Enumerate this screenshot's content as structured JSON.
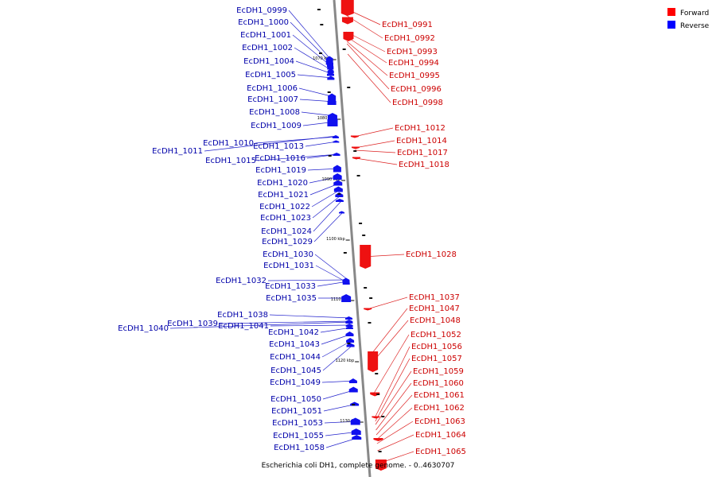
{
  "caption": "Escherichia coli DH1, complete genome. - 0..4630707",
  "legend": [
    {
      "label": "Forward",
      "color": "#ff0000"
    },
    {
      "label": "Reverse",
      "color": "#0000ff"
    }
  ],
  "colors": {
    "forward_fill": "#ee1111",
    "reverse_fill": "#1010ee",
    "forward_text": "#cc0000",
    "reverse_text": "#0000aa",
    "forward_line": "#dd2222",
    "reverse_line": "#2222cc",
    "axis": "#888888"
  },
  "scale_ticks": [
    "1070 kbp",
    "1080 kbp",
    "1090 kbp",
    "1100 kbp",
    "1110 kbp",
    "1120 kbp",
    "1130 kbp"
  ],
  "reverse_genes": [
    "EcDH1_0999",
    "EcDH1_1000",
    "EcDH1_1001",
    "EcDH1_1002",
    "EcDH1_1004",
    "EcDH1_1005",
    "EcDH1_1006",
    "EcDH1_1007",
    "EcDH1_1008",
    "EcDH1_1009",
    "EcDH1_1010",
    "EcDH1_1011",
    "EcDH1_1013",
    "EcDH1_1015",
    "EcDH1_1016",
    "EcDH1_1019",
    "EcDH1_1020",
    "EcDH1_1021",
    "EcDH1_1022",
    "EcDH1_1023",
    "EcDH1_1024",
    "EcDH1_1029",
    "EcDH1_1030",
    "EcDH1_1031",
    "EcDH1_1032",
    "EcDH1_1033",
    "EcDH1_1035",
    "EcDH1_1038",
    "EcDH1_1039",
    "EcDH1_1040",
    "EcDH1_1041",
    "EcDH1_1042",
    "EcDH1_1043",
    "EcDH1_1044",
    "EcDH1_1045",
    "EcDH1_1049",
    "EcDH1_1050",
    "EcDH1_1051",
    "EcDH1_1053",
    "EcDH1_1055",
    "EcDH1_1058"
  ],
  "forward_genes": [
    "EcDH1_0991",
    "EcDH1_0992",
    "EcDH1_0993",
    "EcDH1_0994",
    "EcDH1_0995",
    "EcDH1_0996",
    "EcDH1_0998",
    "EcDH1_1012",
    "EcDH1_1014",
    "EcDH1_1017",
    "EcDH1_1018",
    "EcDH1_1028",
    "EcDH1_1037",
    "EcDH1_1047",
    "EcDH1_1048",
    "EcDH1_1052",
    "EcDH1_1056",
    "EcDH1_1057",
    "EcDH1_1059",
    "EcDH1_1060",
    "EcDH1_1061",
    "EcDH1_1062",
    "EcDH1_1063",
    "EcDH1_1064",
    "EcDH1_1065"
  ]
}
